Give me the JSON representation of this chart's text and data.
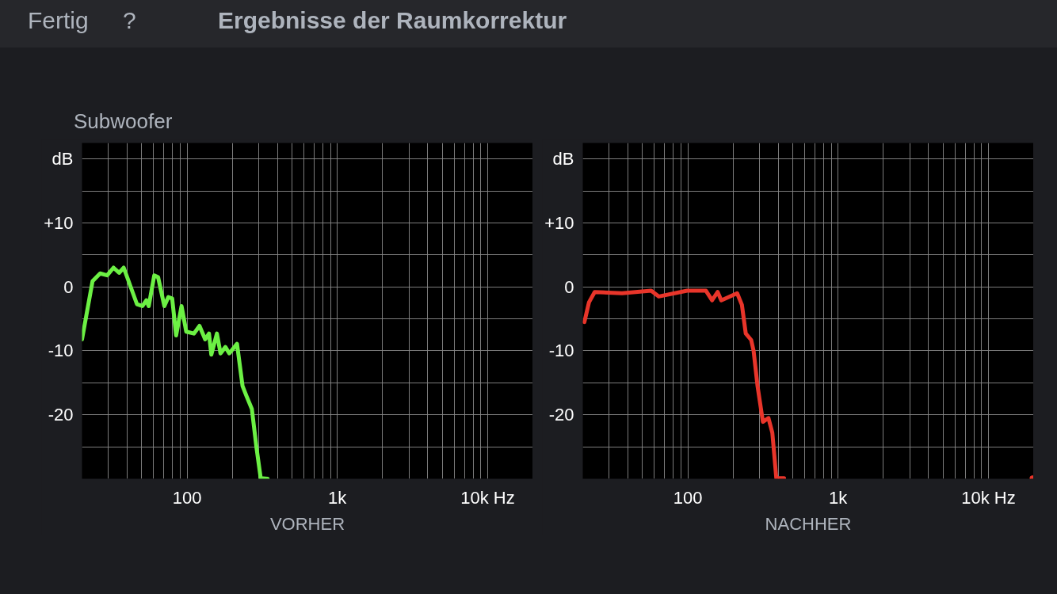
{
  "chart_data": [
    {
      "type": "line",
      "title": "Ergebnisse der Raumkorrektur",
      "subtitle": "Subwoofer",
      "annotations": [
        "Fertig",
        "?"
      ],
      "xlabel": "VORHER",
      "log": "x",
      "grid": true,
      "line_style": "solid",
      "xlim": [
        20,
        20000
      ],
      "ylim": [
        -30,
        22.5
      ],
      "xticks": [
        {
          "value": 30,
          "label": null
        },
        {
          "value": 40,
          "label": null
        },
        {
          "value": 50,
          "label": null
        },
        {
          "value": 60,
          "label": null
        },
        {
          "value": 70,
          "label": null
        },
        {
          "value": 80,
          "label": null
        },
        {
          "value": 90,
          "label": null
        },
        100,
        {
          "value": 200,
          "label": null
        },
        {
          "value": 300,
          "label": null
        },
        {
          "value": 400,
          "label": null
        },
        {
          "value": 500,
          "label": null
        },
        {
          "value": 600,
          "label": null
        },
        {
          "value": 700,
          "label": null
        },
        {
          "value": 800,
          "label": null
        },
        {
          "value": 900,
          "label": null
        },
        {
          "value": 1000,
          "label": "1k"
        },
        {
          "value": 2000,
          "label": null
        },
        {
          "value": 3000,
          "label": null
        },
        {
          "value": 4000,
          "label": null
        },
        {
          "value": 5000,
          "label": null
        },
        {
          "value": 6000,
          "label": null
        },
        {
          "value": 7000,
          "label": null
        },
        {
          "value": 8000,
          "label": null
        },
        {
          "value": 9000,
          "label": null
        },
        {
          "value": 10000,
          "label": "10k Hz"
        }
      ],
      "yticks": [
        {
          "value": 20,
          "label": "dB"
        },
        {
          "value": 15,
          "label": null
        },
        {
          "value": 10,
          "label": "+10"
        },
        {
          "value": 5,
          "label": null
        },
        0,
        {
          "value": -5,
          "label": null
        },
        -10,
        {
          "value": -15,
          "label": null
        },
        -20,
        {
          "value": -25,
          "label": null
        }
      ],
      "series": [
        {
          "color": "#6cf044",
          "x": [
            20,
            23.5,
            26.4,
            29.4,
            32.4,
            35.3,
            37.9,
            46.4,
            50.5,
            53.6,
            55.6,
            60.5,
            64.2,
            70.6,
            75,
            79.6,
            84.6,
            91.9,
            98.8,
            111,
            121,
            132,
            140,
            145,
            158,
            167,
            180,
            191,
            215,
            234,
            249,
            270,
            290,
            309,
            344
          ],
          "values": [
            -8.2,
            0.9,
            2.1,
            1.8,
            3.0,
            2.2,
            3.0,
            -2.7,
            -3.0,
            -2.1,
            -3.0,
            1.8,
            1.5,
            -3.0,
            -1.6,
            -1.8,
            -7.6,
            -3.0,
            -7.0,
            -7.3,
            -6.1,
            -8.2,
            -7.3,
            -10.6,
            -7.3,
            -10.4,
            -9.4,
            -10.4,
            -8.9,
            -15.5,
            -17.1,
            -19.1,
            -25.2,
            -29.9,
            -30
          ]
        }
      ]
    },
    {
      "type": "line",
      "xlabel": "NACHHER",
      "log": "x",
      "grid": true,
      "line_style": "solid",
      "xlim": [
        20,
        20000
      ],
      "ylim": [
        -30,
        22.5
      ],
      "xticks": [
        {
          "value": 30,
          "label": null
        },
        {
          "value": 40,
          "label": null
        },
        {
          "value": 50,
          "label": null
        },
        {
          "value": 60,
          "label": null
        },
        {
          "value": 70,
          "label": null
        },
        {
          "value": 80,
          "label": null
        },
        {
          "value": 90,
          "label": null
        },
        100,
        {
          "value": 200,
          "label": null
        },
        {
          "value": 300,
          "label": null
        },
        {
          "value": 400,
          "label": null
        },
        {
          "value": 500,
          "label": null
        },
        {
          "value": 600,
          "label": null
        },
        {
          "value": 700,
          "label": null
        },
        {
          "value": 800,
          "label": null
        },
        {
          "value": 900,
          "label": null
        },
        {
          "value": 1000,
          "label": "1k"
        },
        {
          "value": 2000,
          "label": null
        },
        {
          "value": 3000,
          "label": null
        },
        {
          "value": 4000,
          "label": null
        },
        {
          "value": 5000,
          "label": null
        },
        {
          "value": 6000,
          "label": null
        },
        {
          "value": 7000,
          "label": null
        },
        {
          "value": 8000,
          "label": null
        },
        {
          "value": 9000,
          "label": null
        },
        {
          "value": 10000,
          "label": "10k Hz"
        }
      ],
      "yticks": [
        {
          "value": 20,
          "label": "dB"
        },
        {
          "value": 15,
          "label": null
        },
        {
          "value": 10,
          "label": "+10"
        },
        {
          "value": 5,
          "label": null
        },
        0,
        {
          "value": -5,
          "label": null
        },
        -10,
        {
          "value": -15,
          "label": null
        },
        -20,
        {
          "value": -25,
          "label": null
        }
      ],
      "series": [
        {
          "color": "#e8352a",
          "x": [
            20.5,
            22,
            24,
            36.5,
            57,
            64,
            99,
            132,
            145,
            158,
            167,
            213,
            229,
            243,
            264,
            274,
            291,
            316,
            344,
            365,
            388,
            437,
            5000,
            19600
          ],
          "values": [
            -5.5,
            -2.4,
            -0.8,
            -1.0,
            -0.6,
            -1.5,
            -0.6,
            -0.6,
            -2.1,
            -0.8,
            -2.1,
            -1.0,
            -2.8,
            -7.3,
            -8.3,
            -10.0,
            -15.5,
            -21.1,
            -20.5,
            -22.8,
            -29.9,
            -29.9,
            null,
            -29.9
          ]
        }
      ]
    }
  ]
}
